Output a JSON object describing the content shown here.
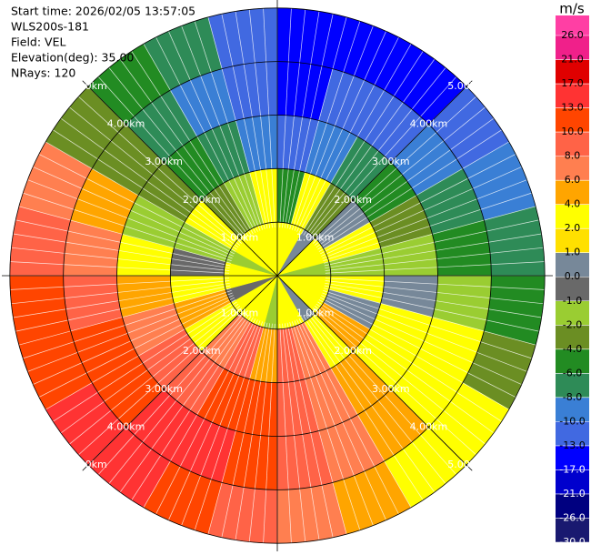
{
  "chart_data": {
    "type": "ppi",
    "info": [
      "Start time: 2026/02/05 13:57:05",
      "WLS200s-181",
      "Field: VEL",
      "Elevation(deg): 35.00",
      "NRays: 120"
    ],
    "rlim": [
      0,
      5.15
    ],
    "rings": [
      {
        "value": 1,
        "label": "1.00km"
      },
      {
        "value": 2,
        "label": "2.00km"
      },
      {
        "value": 3,
        "label": "3.00km"
      },
      {
        "value": 4,
        "label": "4.00km"
      },
      {
        "value": 5,
        "label": "5.00km"
      }
    ],
    "values": [
      [
        3,
        3,
        0.5,
        3,
        3,
        -1.5,
        3,
        3,
        3,
        0.5,
        3,
        3,
        -1.5,
        3,
        3,
        3,
        -0.5,
        3,
        3,
        -1.5,
        3,
        3,
        3,
        3
      ],
      [
        -5,
        3,
        -3,
        0.5,
        3,
        -1.5,
        3,
        0.5,
        5,
        3,
        7,
        9,
        5,
        9,
        7,
        3,
        5,
        3,
        -0.5,
        -1.5,
        3,
        -3,
        -1.5,
        3
      ],
      [
        -11,
        -9,
        -7,
        -5,
        -3,
        -1.5,
        0.5,
        3,
        3,
        5,
        7,
        9,
        11,
        12,
        9,
        9,
        7,
        5,
        3,
        -1.5,
        -3,
        -5,
        -7,
        -9
      ],
      [
        -15,
        -13,
        -11,
        -9,
        -7,
        -5,
        -1.5,
        3,
        3,
        5,
        7,
        9,
        11,
        15,
        15,
        12,
        11,
        9,
        7,
        5,
        -3,
        -7,
        -9,
        -13
      ],
      [
        -15,
        -15,
        -15,
        -11,
        -9,
        -7,
        -5,
        -3,
        3,
        3,
        5,
        7,
        9,
        11,
        15,
        15,
        12,
        11,
        9,
        7,
        -3,
        -5,
        -7,
        -11
      ]
    ],
    "colorbar": {
      "label": "m/s",
      "ticks": [
        {
          "value": 26,
          "label": "26.0"
        },
        {
          "value": 21,
          "label": "21.0"
        },
        {
          "value": 17,
          "label": "17.0"
        },
        {
          "value": 13,
          "label": "13.0"
        },
        {
          "value": 10,
          "label": "10.0"
        },
        {
          "value": 8,
          "label": "8.0"
        },
        {
          "value": 6,
          "label": "6.0"
        },
        {
          "value": 4,
          "label": "4.0"
        },
        {
          "value": 2,
          "label": "2.0"
        },
        {
          "value": 1,
          "label": "1.0"
        },
        {
          "value": 0,
          "label": "0.0"
        },
        {
          "value": -1,
          "label": "-1.0"
        },
        {
          "value": -2,
          "label": "-2.0"
        },
        {
          "value": -4,
          "label": "-4.0"
        },
        {
          "value": -6,
          "label": "-6.0"
        },
        {
          "value": -8,
          "label": "-8.0"
        },
        {
          "value": -10,
          "label": "-10.0"
        },
        {
          "value": -13,
          "label": "-13.0"
        },
        {
          "value": -17,
          "label": "-17.0"
        },
        {
          "value": -21,
          "label": "-21.0"
        },
        {
          "value": -26,
          "label": "-26.0"
        },
        {
          "value": -30,
          "label": "-30.0"
        }
      ],
      "colors": [
        "#ff3fa4",
        "#f0208a",
        "#e00000",
        "#ff3333",
        "#ff4500",
        "#ff6347",
        "#ff7f50",
        "#ffa500",
        "#ffff00",
        "#ffe000",
        "#778899",
        "#696969",
        "#9acd32",
        "#6b8e23",
        "#228b22",
        "#2e8b57",
        "#3a7fd5",
        "#4169e1",
        "#0000ff",
        "#0000cd",
        "#000080",
        "#191970"
      ]
    }
  }
}
